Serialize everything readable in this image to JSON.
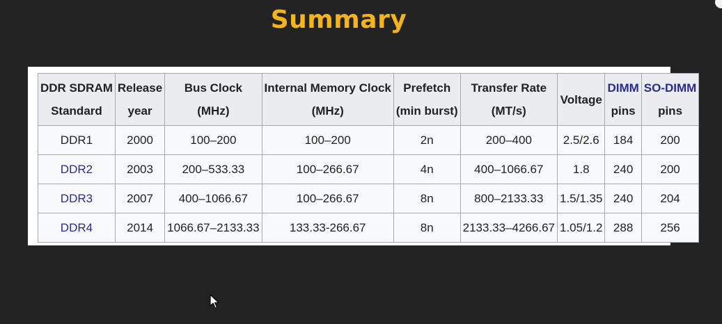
{
  "slide": {
    "title": "Summary"
  },
  "table": {
    "headers": [
      {
        "line1": "DDR SDRAM",
        "line2": "Standard"
      },
      {
        "line1": "Release",
        "line2": "year"
      },
      {
        "line1": "Bus Clock",
        "line2": "(MHz)"
      },
      {
        "line1": "Internal Memory Clock",
        "line2": "(MHz)"
      },
      {
        "line1": "Prefetch",
        "line2": "(min burst)"
      },
      {
        "line1": "Transfer Rate",
        "line2": "(MT/s)"
      },
      {
        "line1": "Voltage",
        "line2": ""
      },
      {
        "line1": "DIMM",
        "line2": "pins"
      },
      {
        "line1": "SO-DIMM",
        "line2": "pins"
      }
    ],
    "rows": [
      [
        "DDR1",
        "2000",
        "100–200",
        "100–200",
        "2n",
        "200–400",
        "2.5/2.6",
        "184",
        "200"
      ],
      [
        "DDR2",
        "2003",
        "200–533.33",
        "100–266.67",
        "4n",
        "400–1066.67",
        "1.8",
        "240",
        "200"
      ],
      [
        "DDR3",
        "2007",
        "400–1066.67",
        "100–266.67",
        "8n",
        "800–2133.33",
        "1.5/1.35",
        "240",
        "204"
      ],
      [
        "DDR4",
        "2014",
        "1066.67–2133.33",
        "133.33-266.67",
        "8n",
        "2133.33–4266.67",
        "1.05/1.2",
        "288",
        "256"
      ]
    ]
  },
  "colors": {
    "title": "#f5b41c",
    "background": "#232323",
    "link": "#2a2a8a"
  },
  "icons": {
    "cursor": "mouse-pointer-icon"
  }
}
